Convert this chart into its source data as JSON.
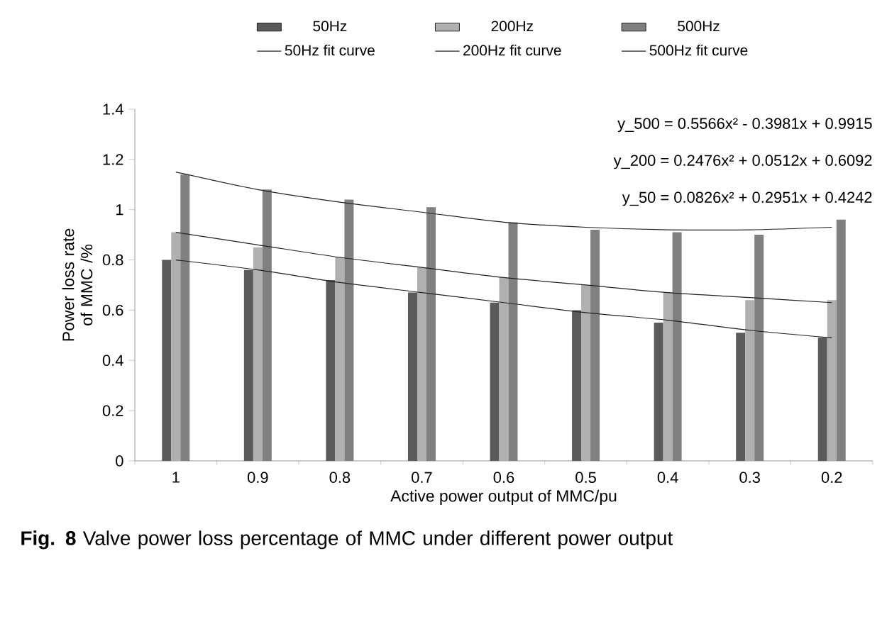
{
  "chart_data": {
    "type": "bar",
    "title": "**Fig. 8** Valve power loss percentage of MMC under different power output",
    "xlabel": "Active power output of MMC/pu",
    "ylabel": "Power loss rate of MMC /%",
    "categories": [
      "1",
      "0.9",
      "0.8",
      "0.7",
      "0.6",
      "0.5",
      "0.4",
      "0.3",
      "0.2"
    ],
    "series": [
      {
        "name": "50Hz",
        "color": "#5a5a5a",
        "values": [
          0.8,
          0.76,
          0.72,
          0.67,
          0.63,
          0.6,
          0.55,
          0.51,
          0.49
        ]
      },
      {
        "name": "200Hz",
        "color": "#b0b0b0",
        "values": [
          0.91,
          0.85,
          0.81,
          0.77,
          0.73,
          0.7,
          0.67,
          0.64,
          0.64
        ]
      },
      {
        "name": "500Hz",
        "color": "#808080",
        "values": [
          1.14,
          1.08,
          1.04,
          1.01,
          0.95,
          0.92,
          0.91,
          0.9,
          0.96
        ]
      },
      {
        "name": "50Hz fit curve",
        "type": "line",
        "color": "#222222",
        "values": [
          0.8,
          0.76,
          0.71,
          0.67,
          0.63,
          0.59,
          0.56,
          0.52,
          0.49
        ]
      },
      {
        "name": "200Hz fit curve",
        "type": "line",
        "color": "#222222",
        "values": [
          0.91,
          0.86,
          0.81,
          0.77,
          0.73,
          0.7,
          0.67,
          0.65,
          0.63
        ]
      },
      {
        "name": "500Hz fit curve",
        "type": "line",
        "color": "#222222",
        "values": [
          1.15,
          1.08,
          1.03,
          0.99,
          0.95,
          0.93,
          0.92,
          0.92,
          0.93
        ]
      }
    ],
    "ylim": [
      0,
      1.4
    ],
    "yticks": [
      0,
      0.2,
      0.4,
      0.6,
      0.8,
      1,
      1.2,
      1.4
    ],
    "legend": "top",
    "annotations": [
      "y_500 = 0.5566x² - 0.3981x + 0.9915",
      "y_200 = 0.2476x² + 0.0512x + 0.6092",
      "y_50 = 0.0826x² + 0.2951x + 0.4242"
    ]
  }
}
